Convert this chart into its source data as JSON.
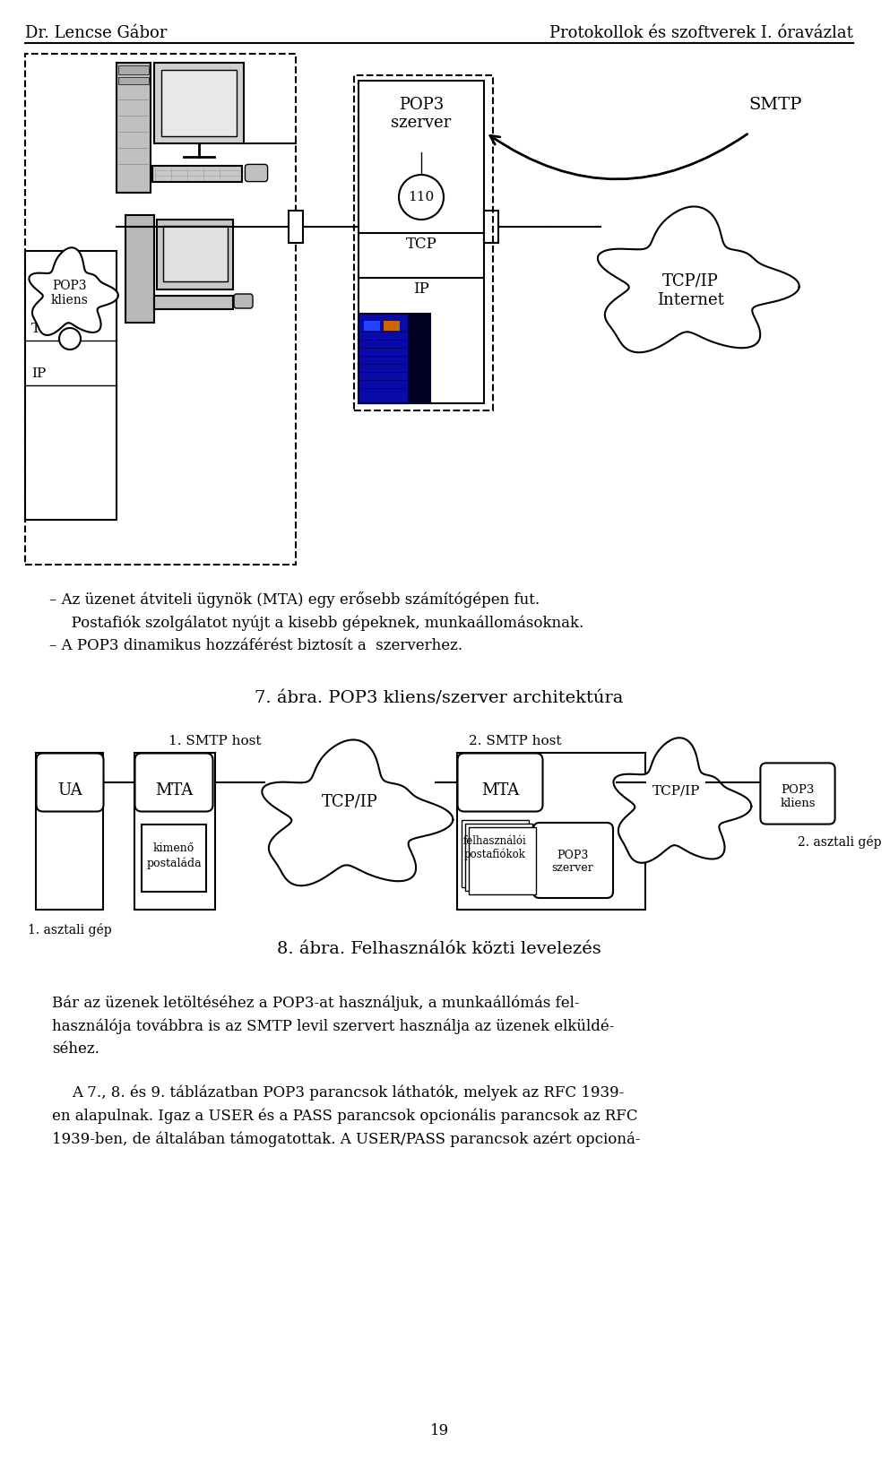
{
  "header_left": "Dr. Lencse Gábor",
  "header_right": "Protokollok és szoftverek I. óravázlat",
  "bullet1_line1": "– Az üzenet átviteli ügynök (MTA) egy erősebb számítógépen fut.",
  "bullet1_line2": "  Postafiók szolgálatot nyújt a kisebb gépeknek, munkaállomásoknak.",
  "bullet2": "– A POP3 dinamikus hozzáférést biztosít a  szerverhez.",
  "fig7_caption": "7. ábra. POP3 kliens/szerver architektúra",
  "fig8_caption": "8. ábra. Felhasználók közti levelezés",
  "smtp_host1": "1. SMTP host",
  "smtp_host2": "2. SMTP host",
  "label_ua": "UA",
  "label_mta": "MTA",
  "label_tcpip": "TCP/IP",
  "label_pop3kliens_fig8": "POP3\nkliens",
  "label_pop3szerver_fig8": "POP3\nszerver",
  "label_kimeno": "kimenő\npostaláda",
  "label_felh_post1": "felhasználói",
  "label_felh_post2": "postafiókok",
  "label_asztali1": "1. asztali gép",
  "label_asztali2": "2. asztali gép",
  "label_pop3szerver_fig7": "POP3\nszerver",
  "label_110": "110",
  "label_tcp": "TCP",
  "label_ip": "IP",
  "label_smtp": "SMTP",
  "label_tcpip_internet": "TCP/IP\nInternet",
  "label_pop3kliens_fig7": "POP3\nkliens",
  "body_para1_line1": "Bár az üzenek letöltéséhez a POP3-at használjuk, a munkaállómás fel-",
  "body_para1_line2": "használója továbbra is az SMTP levil szervert használja az üzenek elküldé-",
  "body_para1_line3": "séhez.",
  "body_para2_line1": "A 7., 8. és 9. táblázatban POP3 parancsok láthatók, melyek az RFC 1939-",
  "body_para2_line2": "en alapulnak. Igaz a USER és a PASS parancsok opcionális parancsok az RFC",
  "body_para2_line3": "1939-ben, de általában támogatottak. A USER/PASS parancsok azért opcioná-",
  "page_number": "19"
}
